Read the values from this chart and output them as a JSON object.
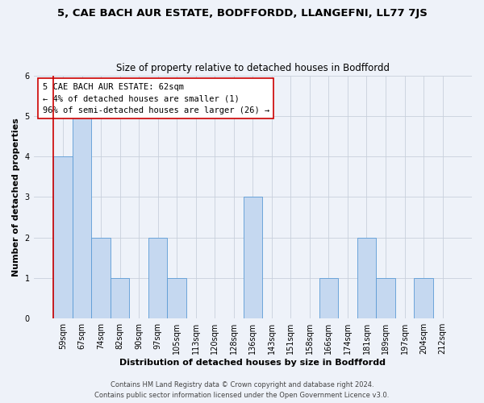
{
  "title": "5, CAE BACH AUR ESTATE, BODFFORDD, LLANGEFNI, LL77 7JS",
  "subtitle": "Size of property relative to detached houses in Bodffordd",
  "xlabel": "Distribution of detached houses by size in Bodffordd",
  "ylabel": "Number of detached properties",
  "footer_line1": "Contains HM Land Registry data © Crown copyright and database right 2024.",
  "footer_line2": "Contains public sector information licensed under the Open Government Licence v3.0.",
  "annotation_line1": "5 CAE BACH AUR ESTATE: 62sqm",
  "annotation_line2": "← 4% of detached houses are smaller (1)",
  "annotation_line3": "96% of semi-detached houses are larger (26) →",
  "bin_labels": [
    "59sqm",
    "67sqm",
    "74sqm",
    "82sqm",
    "90sqm",
    "97sqm",
    "105sqm",
    "113sqm",
    "120sqm",
    "128sqm",
    "136sqm",
    "143sqm",
    "151sqm",
    "158sqm",
    "166sqm",
    "174sqm",
    "181sqm",
    "189sqm",
    "197sqm",
    "204sqm",
    "212sqm"
  ],
  "bar_heights": [
    4,
    5,
    2,
    1,
    0,
    2,
    1,
    0,
    0,
    0,
    3,
    0,
    0,
    0,
    1,
    0,
    2,
    1,
    0,
    1,
    0
  ],
  "bar_color": "#c5d8f0",
  "bar_edge_color": "#5b9bd5",
  "ylim": [
    0,
    6
  ],
  "yticks": [
    0,
    1,
    2,
    3,
    4,
    5,
    6
  ],
  "grid_color": "#c8d0dc",
  "bg_color": "#eef2f9",
  "annotation_box_edge_color": "#cc0000",
  "property_line_color": "#cc0000",
  "title_fontsize": 9.5,
  "subtitle_fontsize": 8.5,
  "axis_label_fontsize": 8,
  "tick_fontsize": 7,
  "annotation_fontsize": 7.5,
  "footer_fontsize": 6
}
